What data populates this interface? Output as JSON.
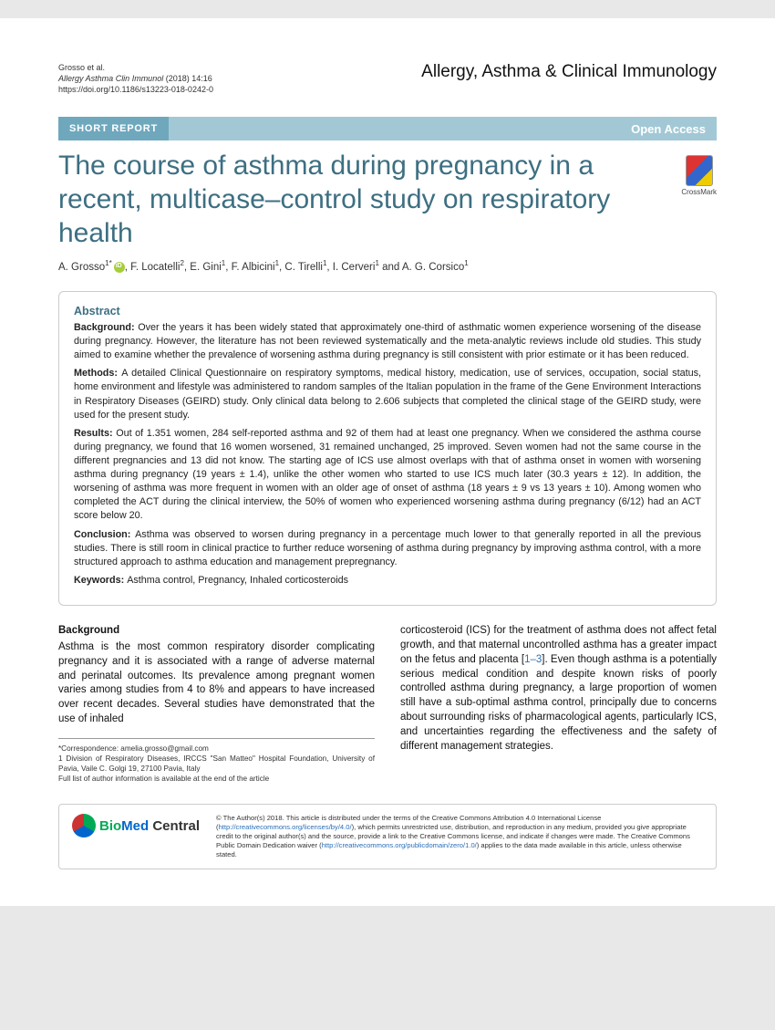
{
  "citation": {
    "authors": "Grosso et al.",
    "journal": "Allergy Asthma Clin Immunol",
    "year_vol": "(2018) 14:16",
    "doi": "https://doi.org/10.1186/s13223-018-0242-0"
  },
  "journal_name": "Allergy, Asthma & Clinical Immunology",
  "bar": {
    "left": "SHORT REPORT",
    "right": "Open Access"
  },
  "title": "The course of asthma during pregnancy in a recent, multicase–control study on respiratory health",
  "crossmark": "CrossMark",
  "authors_html": "A. Grosso<sup>1*</sup><span class='orcid'></span>, F. Locatelli<sup>2</sup>, E. Gini<sup>1</sup>, F. Albicini<sup>1</sup>, C. Tirelli<sup>1</sup>, I. Cerveri<sup>1</sup> and A. G. Corsico<sup>1</sup>",
  "abstract": {
    "heading": "Abstract",
    "background": "Over the years it has been widely stated that approximately one-third of asthmatic women experience worsening of the disease during pregnancy. However, the literature has not been reviewed systematically and the meta-analytic reviews include old studies. This study aimed to examine whether the prevalence of worsening asthma during pregnancy is still consistent with prior estimate or it has been reduced.",
    "methods": "A detailed Clinical Questionnaire on respiratory symptoms, medical history, medication, use of services, occupation, social status, home environment and lifestyle was administered to random samples of the Italian population in the frame of the Gene Environment Interactions in Respiratory Diseases (GEIRD) study. Only clinical data belong to 2.606 subjects that completed the clinical stage of the GEIRD study, were used for the present study.",
    "results": "Out of 1.351 women, 284 self-reported asthma and 92 of them had at least one pregnancy. When we considered the asthma course during pregnancy, we found that 16 women worsened, 31 remained unchanged, 25 improved. Seven women had not the same course in the different pregnancies and 13 did not know. The starting age of ICS use almost overlaps with that of asthma onset in women with worsening asthma during pregnancy (19 years ± 1.4), unlike the other women who started to use ICS much later (30.3 years ± 12). In addition, the worsening of asthma was more frequent in women with an older age of onset of asthma (18 years ± 9 vs 13 years ± 10). Among women who completed the ACT during the clinical interview, the 50% of women who experienced worsening asthma during pregnancy (6/12) had an ACT score below 20.",
    "conclusion": "Asthma was observed to worsen during pregnancy in a percentage much lower to that generally reported in all the previous studies. There is still room in clinical practice to further reduce worsening of asthma during pregnancy by improving asthma control, with a more structured approach to asthma education and management prepregnancy.",
    "keywords": "Asthma control, Pregnancy, Inhaled corticosteroids"
  },
  "body": {
    "bg_head": "Background",
    "col1": "Asthma is the most common respiratory disorder complicating pregnancy and it is associated with a range of adverse maternal and perinatal outcomes. Its prevalence among pregnant women varies among studies from 4 to 8% and appears to have increased over recent decades. Several studies have demonstrated that the use of inhaled",
    "col2a": "corticosteroid (ICS) for the treatment of asthma does not affect fetal growth, and that maternal uncontrolled asthma has a greater impact on the fetus and placenta [",
    "col2_link": "1–3",
    "col2b": "]. Even though asthma is a potentially serious medical condition and despite known risks of poorly controlled asthma during pregnancy, a large proportion of women still have a sub-optimal asthma control, principally due to concerns about surrounding risks of pharmacological agents, particularly ICS, and uncertainties regarding the effectiveness and the safety of different management strategies."
  },
  "corr": {
    "email": "*Correspondence: amelia.grosso@gmail.com",
    "aff": "1 Division of Respiratory Diseases, IRCCS \"San Matteo\" Hospital Foundation, University of Pavia, Vaile C. Golgi 19, 27100 Pavia, Italy",
    "note": "Full list of author information is available at the end of the article"
  },
  "license": {
    "text1": "© The Author(s) 2018. This article is distributed under the terms of the Creative Commons Attribution 4.0 International License (",
    "link1": "http://creativecommons.org/licenses/by/4.0/",
    "text2": "), which permits unrestricted use, distribution, and reproduction in any medium, provided you give appropriate credit to the original author(s) and the source, provide a link to the Creative Commons license, and indicate if changes were made. The Creative Commons Public Domain Dedication waiver (",
    "link2": "http://creativecommons.org/publicdomain/zero/1.0/",
    "text3": ") applies to the data made available in this article, unless otherwise stated."
  }
}
